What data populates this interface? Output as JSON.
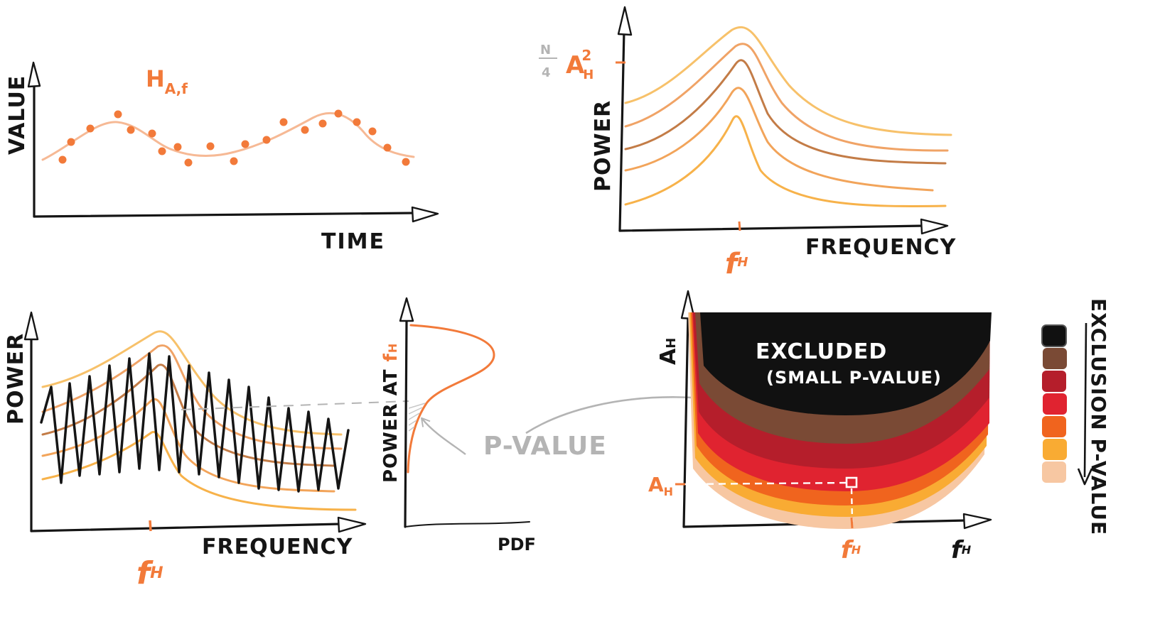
{
  "panel_timeseries": {
    "y_label": "VALUE",
    "x_label": "TIME",
    "signal_label_main": "H",
    "signal_label_sub": "A,f"
  },
  "panel_spectrum": {
    "y_label": "POWER",
    "x_label": "FREQUENCY",
    "freq_tick_main": "f",
    "freq_tick_sub": "H",
    "amp_label_num": "N",
    "amp_label_den": "4",
    "amp_label_main": "A",
    "amp_label_sub": "H",
    "amp_label_sup": "2"
  },
  "panel_spectrum_noise": {
    "y_label": "POWER",
    "x_label": "FREQUENCY",
    "freq_tick_main": "f",
    "freq_tick_sub": "H"
  },
  "panel_pdf": {
    "y_label_prefix": "POWER AT ",
    "y_label_main": "f",
    "y_label_sub": "H",
    "x_label": "PDF",
    "annotation": "P-VALUE"
  },
  "panel_exclusion": {
    "y_label_main": "A",
    "y_label_sub": "H",
    "x_label_main": "f",
    "x_label_sub": "H",
    "amp_tick_main": "A",
    "amp_tick_sub": "H",
    "freq_tick_main": "f",
    "freq_tick_sub": "H",
    "excluded_title": "EXCLUDED",
    "excluded_subtitle": "(SMALL P-VALUE)"
  },
  "legend": {
    "title": "EXCLUSION P-VALUE",
    "colors": [
      "#111111",
      "#7a4a35",
      "#b51e2b",
      "#e02330",
      "#f0641e",
      "#f9ab33",
      "#f7c7a2"
    ]
  },
  "palette": {
    "ink": "#151515",
    "orange": "#f27a3a",
    "light_orange": "#f5b27c",
    "amber": "#f7b24a",
    "brown": "#c37c47",
    "gray": "#b4b4b4"
  }
}
